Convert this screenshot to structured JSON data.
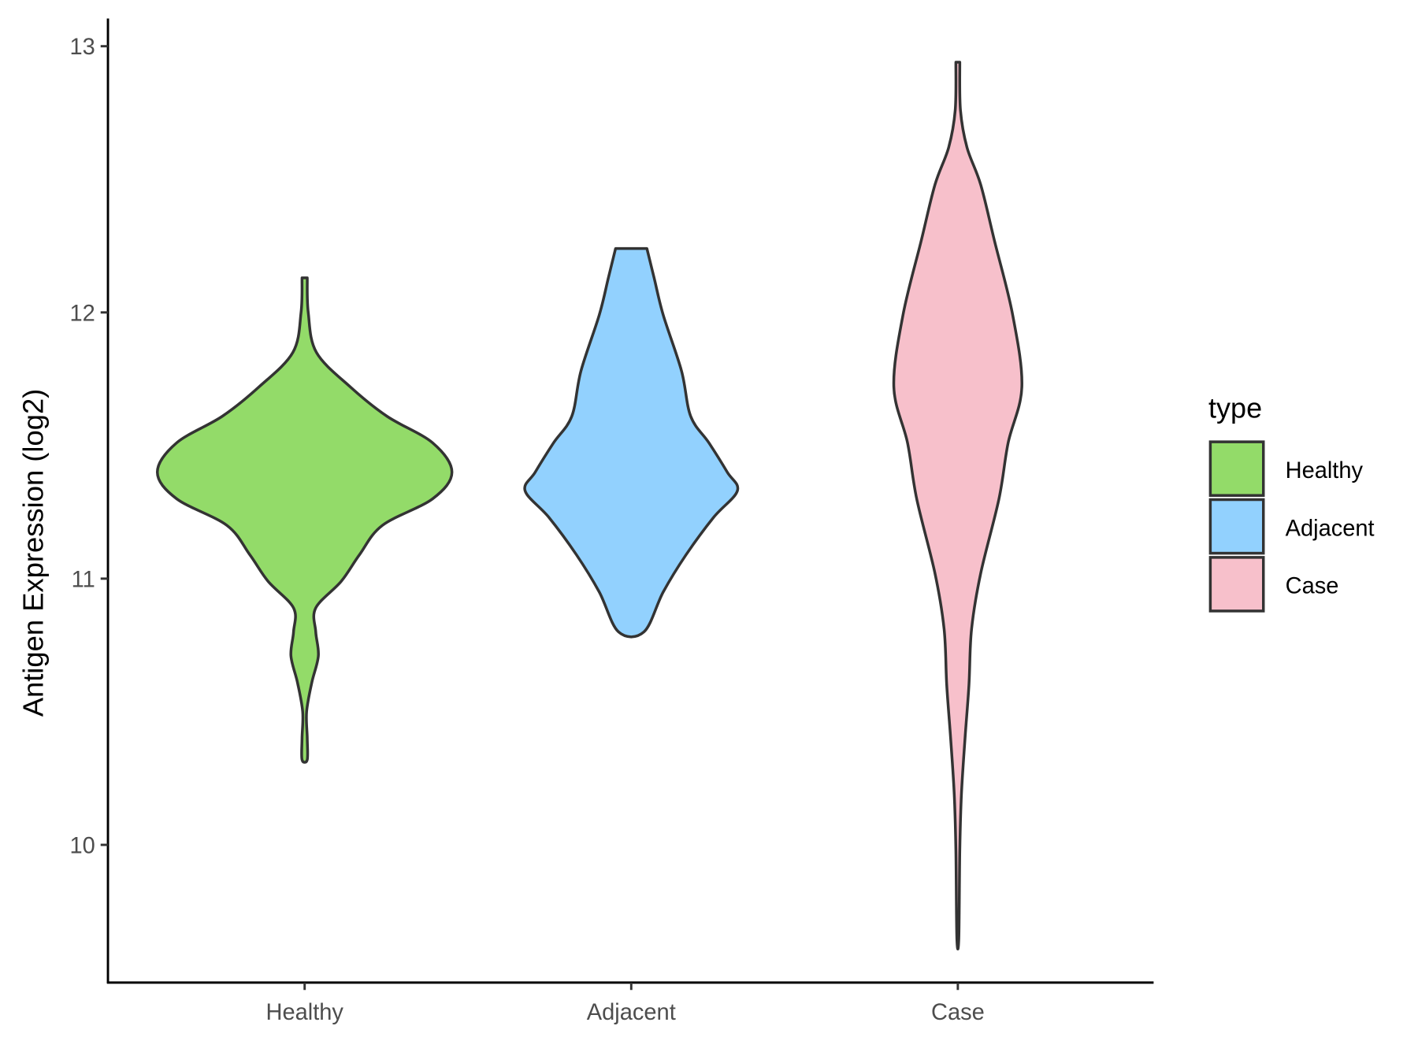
{
  "chart_data": {
    "type": "violin",
    "title": "",
    "xlabel": "",
    "ylabel": "Antigen Expression (log2)",
    "ylim": [
      9.52,
      13.1
    ],
    "yticks": [
      10,
      11,
      12,
      13
    ],
    "ytick_labels": [
      "10",
      "11",
      "12",
      "13"
    ],
    "categories": [
      "Healthy",
      "Adjacent",
      "Case"
    ],
    "grid": false,
    "legend": {
      "title": "type",
      "placement": "right",
      "entries": [
        "Healthy",
        "Adjacent",
        "Case"
      ]
    },
    "series": [
      {
        "name": "Healthy",
        "color": "#93DB69",
        "profile": [
          [
            12.13,
            0.008
          ],
          [
            12.0,
            0.011
          ],
          [
            11.85,
            0.036
          ],
          [
            11.72,
            0.14
          ],
          [
            11.61,
            0.252
          ],
          [
            11.51,
            0.392
          ],
          [
            11.4,
            0.451
          ],
          [
            11.3,
            0.392
          ],
          [
            11.2,
            0.238
          ],
          [
            11.09,
            0.168
          ],
          [
            10.99,
            0.112
          ],
          [
            10.89,
            0.034
          ],
          [
            10.8,
            0.034
          ],
          [
            10.71,
            0.042
          ],
          [
            10.61,
            0.022
          ],
          [
            10.5,
            0.006
          ],
          [
            10.4,
            0.008
          ],
          [
            10.32,
            0.008
          ]
        ]
      },
      {
        "name": "Adjacent",
        "color": "#92D1FE",
        "profile": [
          [
            12.24,
            0.048
          ],
          [
            12.13,
            0.07
          ],
          [
            11.99,
            0.098
          ],
          [
            11.78,
            0.154
          ],
          [
            11.61,
            0.182
          ],
          [
            11.51,
            0.238
          ],
          [
            11.4,
            0.294
          ],
          [
            11.33,
            0.325
          ],
          [
            11.23,
            0.252
          ],
          [
            11.09,
            0.168
          ],
          [
            10.95,
            0.098
          ],
          [
            10.8,
            0.039
          ]
        ]
      },
      {
        "name": "Case",
        "color": "#F7C0CB",
        "profile": [
          [
            12.94,
            0.006
          ],
          [
            12.76,
            0.008
          ],
          [
            12.62,
            0.028
          ],
          [
            12.48,
            0.07
          ],
          [
            12.27,
            0.112
          ],
          [
            11.99,
            0.168
          ],
          [
            11.72,
            0.196
          ],
          [
            11.51,
            0.154
          ],
          [
            11.3,
            0.126
          ],
          [
            11.02,
            0.07
          ],
          [
            10.81,
            0.042
          ],
          [
            10.6,
            0.034
          ],
          [
            10.4,
            0.022
          ],
          [
            10.19,
            0.011
          ],
          [
            9.98,
            0.006
          ],
          [
            9.65,
            0.003
          ]
        ]
      }
    ]
  }
}
